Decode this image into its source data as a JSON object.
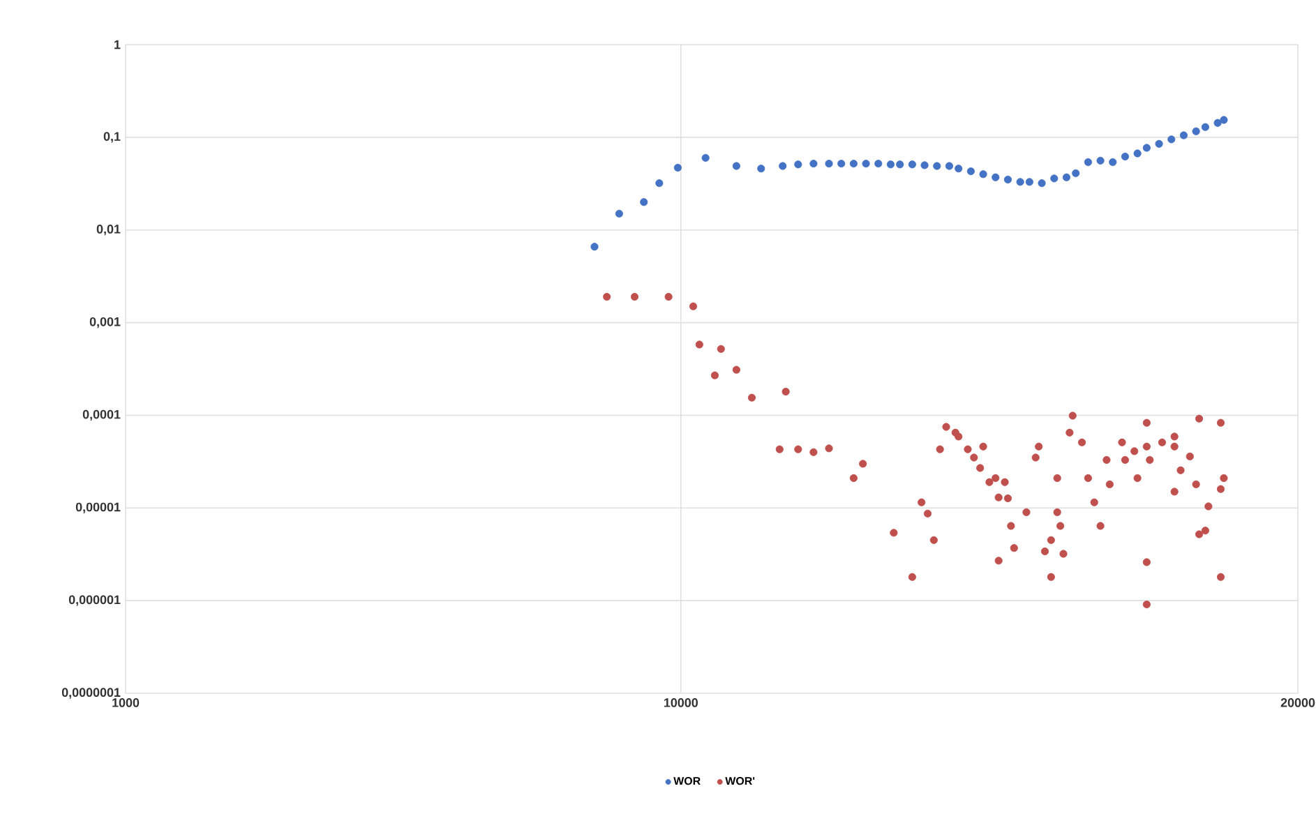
{
  "chart_data": {
    "type": "scatter",
    "xlim": [
      1000,
      20000
    ],
    "xticks": [
      1000,
      10000,
      20000
    ],
    "ylim": [
      1e-07,
      1
    ],
    "yticks": [
      {
        "value": 1e-07,
        "label": "0,0000001"
      },
      {
        "value": 1e-06,
        "label": "0,000001"
      },
      {
        "value": 1e-05,
        "label": "0,00001"
      },
      {
        "value": 0.0001,
        "label": "0,0001"
      },
      {
        "value": 0.001,
        "label": "0,001"
      },
      {
        "value": 0.01,
        "label": "0,01"
      },
      {
        "value": 0.1,
        "label": "0,1"
      },
      {
        "value": 1,
        "label": "1"
      }
    ],
    "log": "y",
    "grid": true,
    "legend": "bottom",
    "marker": "circle",
    "series": [
      {
        "name": "WOR",
        "color": "#4472c4",
        "x": [
          8600,
          9000,
          9400,
          9650,
          9950,
          10400,
          10900,
          11300,
          11650,
          11900,
          12150,
          12400,
          12600,
          12800,
          13000,
          13200,
          13400,
          13550,
          13750,
          13950,
          14150,
          14350,
          14500,
          14700,
          14900,
          15100,
          15300,
          15500,
          15650,
          15850,
          16050,
          16250,
          16400,
          16600,
          16800,
          17000,
          17200,
          17400,
          17550,
          17750,
          17950,
          18150,
          18350,
          18500,
          18700,
          18800
        ],
        "values": [
          0.0066,
          0.015,
          0.02,
          0.032,
          0.047,
          0.06,
          0.049,
          0.046,
          0.049,
          0.051,
          0.052,
          0.052,
          0.052,
          0.052,
          0.052,
          0.052,
          0.051,
          0.051,
          0.051,
          0.05,
          0.049,
          0.049,
          0.046,
          0.043,
          0.04,
          0.037,
          0.035,
          0.033,
          0.033,
          0.032,
          0.036,
          0.037,
          0.041,
          0.054,
          0.056,
          0.054,
          0.062,
          0.067,
          0.077,
          0.085,
          0.095,
          0.105,
          0.116,
          0.129,
          0.143,
          0.154
        ]
      },
      {
        "name": "WOR'",
        "color": "#c0504d",
        "x": [
          8800,
          9250,
          9800,
          10200,
          10300,
          10650,
          10550,
          10900,
          11150,
          11700,
          11600,
          11900,
          12150,
          12400,
          12800,
          12950,
          13450,
          13750,
          13900,
          14000,
          14100,
          14200,
          14300,
          14450,
          14500,
          14650,
          14750,
          14850,
          14900,
          15000,
          15100,
          15150,
          15250,
          15150,
          15400,
          16350,
          16300,
          16500,
          15800,
          15750,
          16100,
          15300,
          15600,
          15350,
          16100,
          16150,
          16000,
          15900,
          16000,
          16200,
          16600,
          16700,
          16800,
          16900,
          16950,
          17150,
          17200,
          17400,
          17550,
          17550,
          17600,
          17800,
          18000,
          18000,
          18000,
          18250,
          18350,
          18400,
          18750,
          18550,
          18400,
          18750,
          18800,
          18750,
          17550,
          17550,
          18500,
          18100,
          17350
        ],
        "values": [
          0.0019,
          0.0019,
          0.0019,
          0.0015,
          0.00058,
          0.00052,
          0.00027,
          0.00031,
          0.000155,
          0.00018,
          4.3e-05,
          4.3e-05,
          4e-05,
          4.4e-05,
          2.1e-05,
          3e-05,
          5.4e-06,
          1.8e-06,
          1.15e-05,
          8.7e-06,
          4.5e-06,
          4.3e-05,
          7.5e-05,
          6.5e-05,
          5.9e-05,
          4.3e-05,
          3.5e-05,
          2.7e-05,
          4.6e-05,
          1.9e-05,
          2.1e-05,
          1.3e-05,
          1.9e-05,
          2.7e-06,
          3.7e-06,
          9.9e-05,
          6.5e-05,
          5.1e-05,
          4.6e-05,
          3.5e-05,
          2.1e-05,
          1.27e-05,
          9e-06,
          6.4e-06,
          9e-06,
          6.4e-06,
          4.5e-06,
          3.4e-06,
          1.8e-06,
          3.2e-06,
          2.1e-05,
          1.15e-05,
          6.4e-06,
          3.3e-05,
          1.8e-05,
          5.1e-05,
          3.3e-05,
          2.1e-05,
          8.3e-05,
          4.6e-05,
          3.3e-05,
          5.1e-05,
          4.6e-05,
          1.5e-05,
          5.9e-05,
          3.6e-05,
          1.8e-05,
          9.2e-05,
          8.3e-05,
          1.04e-05,
          5.2e-06,
          1.6e-05,
          2.1e-05,
          1.8e-06,
          2.6e-06,
          9.1e-07,
          5.7e-06,
          2.55e-05,
          4.1e-05
        ]
      }
    ]
  }
}
